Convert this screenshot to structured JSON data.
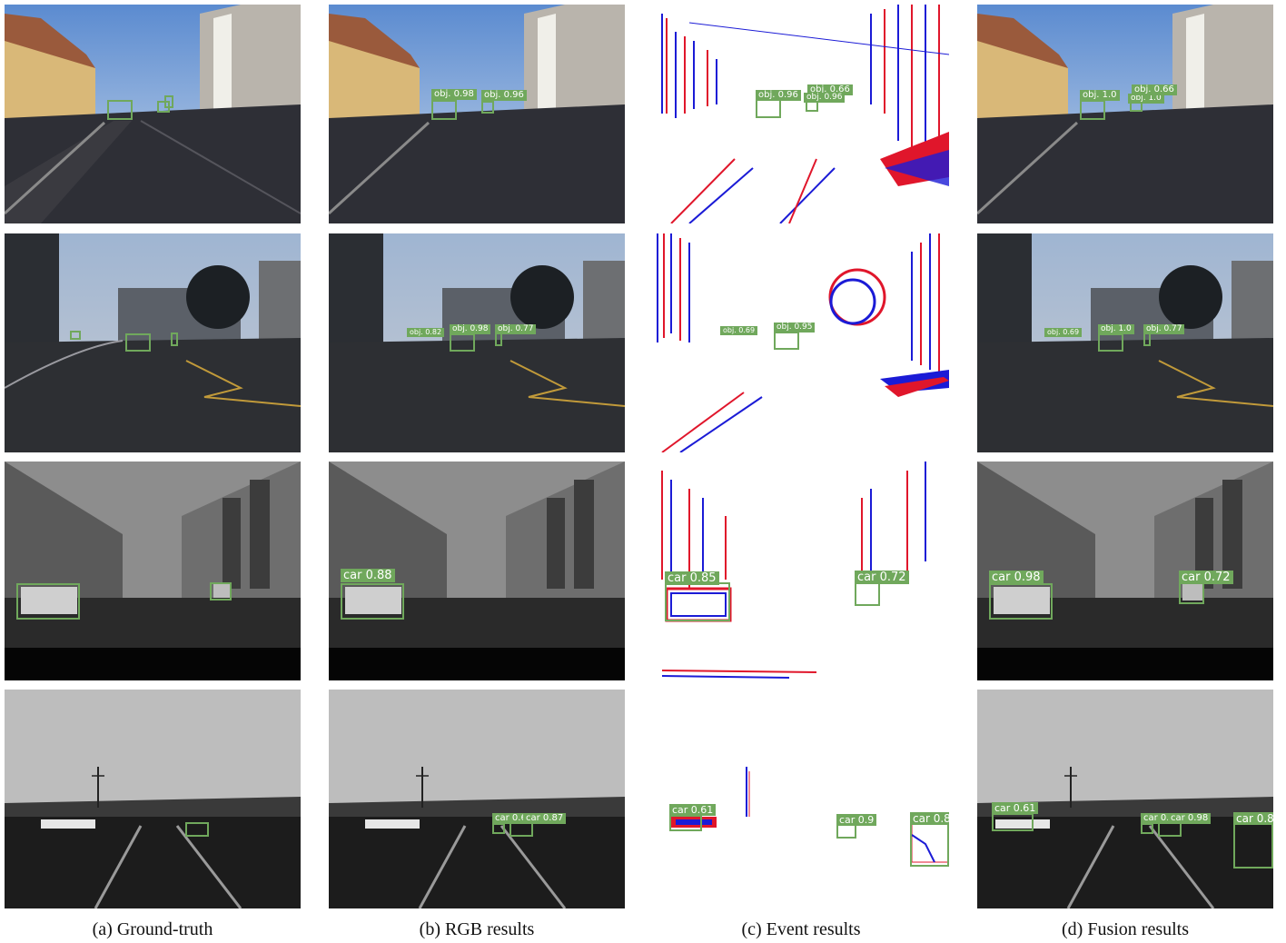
{
  "captions": {
    "col_a": "(a) Ground-truth",
    "col_b": "(b) RGB results",
    "col_c": "(c) Event results",
    "col_d": "(d) Fusion results"
  },
  "colors": {
    "box": "#70a85c",
    "event_pos": "#e0162b",
    "event_neg": "#1b1bd6"
  },
  "rows": [
    {
      "rgb": [
        "obj. 0.98",
        "obj. 0.96"
      ],
      "event": [
        "obj. 0.96",
        "obj. 0.66",
        "obj. 0.96"
      ],
      "fusion": [
        "obj. 1.0",
        "obj. 1.0",
        "obj. 0.66"
      ]
    },
    {
      "rgb": [
        "obj. 0.82",
        "obj. 0.98",
        "obj. 0.77"
      ],
      "event": [
        "obj. 0.69",
        "obj. 0.95"
      ],
      "fusion": [
        "obj. 0.69",
        "obj. 1.0",
        "obj. 0.77"
      ]
    },
    {
      "rgb": [
        "car 0.88"
      ],
      "event": [
        "car 0.85",
        "car 0.72"
      ],
      "fusion": [
        "car 0.98",
        "car 0.72"
      ]
    },
    {
      "rgb": [
        "car 0.62",
        "car 0.87"
      ],
      "event": [
        "car 0.61",
        "car 0.9",
        "car 0.8"
      ],
      "fusion": [
        "car 0.61",
        "car 0.62",
        "car 0.98",
        "car 0.8"
      ]
    }
  ]
}
